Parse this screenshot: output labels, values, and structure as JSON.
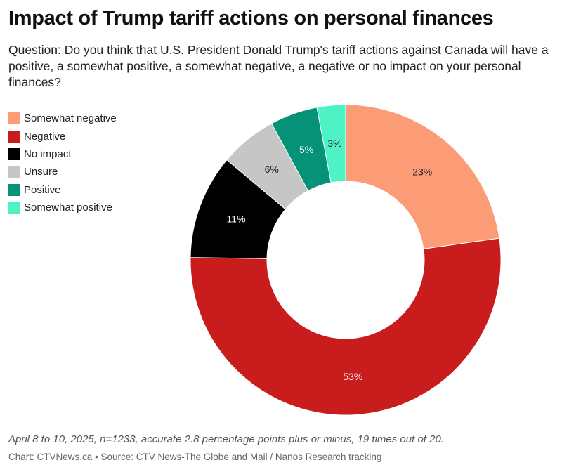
{
  "title": "Impact of Trump tariff actions on personal finances",
  "subtitle": "Question: Do you think that U.S. President Donald Trump's tariff actions against Canada will have a positive, a somewhat positive, a somewhat negative, a negative or no impact on your personal finances?",
  "note": "April 8 to 10, 2025, n=1233, accurate 2.8 percentage points plus or minus, 19 times out of 20.",
  "credit": "Chart: CTVNews.ca • Source: CTV News-The Globe and Mail / Nanos Research tracking",
  "chart_data": {
    "type": "pie",
    "donut": true,
    "legend_position": "left",
    "slices": [
      {
        "label": "Somewhat negative",
        "value": 23,
        "display": "23%",
        "color": "#FC9C77",
        "text_color": "#222222"
      },
      {
        "label": "Negative",
        "value": 53,
        "display": "53%",
        "color": "#C91D1D",
        "text_color": "#FFFFFF"
      },
      {
        "label": "No impact",
        "value": 11,
        "display": "11%",
        "color": "#000000",
        "text_color": "#FFFFFF"
      },
      {
        "label": "Unsure",
        "value": 6,
        "display": "6%",
        "color": "#C6C6C6",
        "text_color": "#222222"
      },
      {
        "label": "Positive",
        "value": 5,
        "display": "5%",
        "color": "#069276",
        "text_color": "#FFFFFF"
      },
      {
        "label": "Somewhat positive",
        "value": 3,
        "display": "3%",
        "color": "#4DF3C5",
        "text_color": "#222222"
      }
    ]
  }
}
